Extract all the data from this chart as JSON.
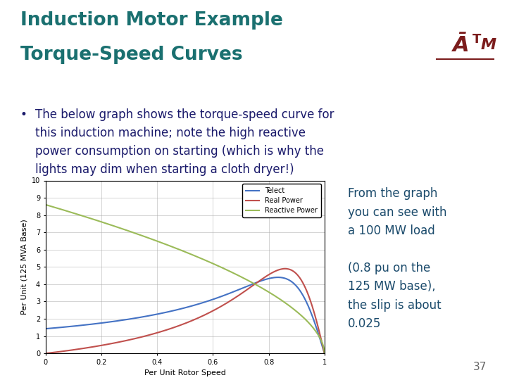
{
  "title_line1": "Induction Motor Example",
  "title_line2": "Torque-Speed Curves",
  "title_color": "#1a7070",
  "title_fontsize": 19,
  "separator_color": "#1a1a8c",
  "bullet_text_lines": [
    "The below graph shows the torque-speed curve for",
    "this induction machine; note the high reactive",
    "power consumption on starting (which is why the",
    "lights may dim when starting a cloth dryer!)"
  ],
  "bullet_fontsize": 12,
  "bullet_color": "#1a1a6b",
  "annotation_text": "From the graph\nyou can see with\na 100 MW load\n\n(0.8 pu on the\n125 MW base),\nthe slip is about\n0.025",
  "annotation_bg": "#b8d8a0",
  "annotation_color": "#1a4a6b",
  "annotation_fontsize": 12,
  "page_number": "37",
  "page_number_color": "#666666",
  "xlabel": "Per Unit Rotor Speed",
  "ylabel": "Per Unit (125 MVA Base)",
  "xlim": [
    0,
    1
  ],
  "ylim": [
    0,
    10
  ],
  "xticks": [
    0,
    0.2,
    0.4,
    0.6,
    0.8,
    1
  ],
  "ytick_labels": [
    "0",
    "1",
    "2",
    "3",
    "4",
    "5",
    "6",
    "7",
    "8",
    "9",
    "10"
  ],
  "legend_labels": [
    "Telect",
    "Real Power",
    "Reactive Power"
  ],
  "line_colors": [
    "#4472c4",
    "#c0504d",
    "#9bbb59"
  ],
  "background_color": "#ffffff",
  "plot_bg": "#ffffff",
  "logo_color": "#7b1c1c"
}
